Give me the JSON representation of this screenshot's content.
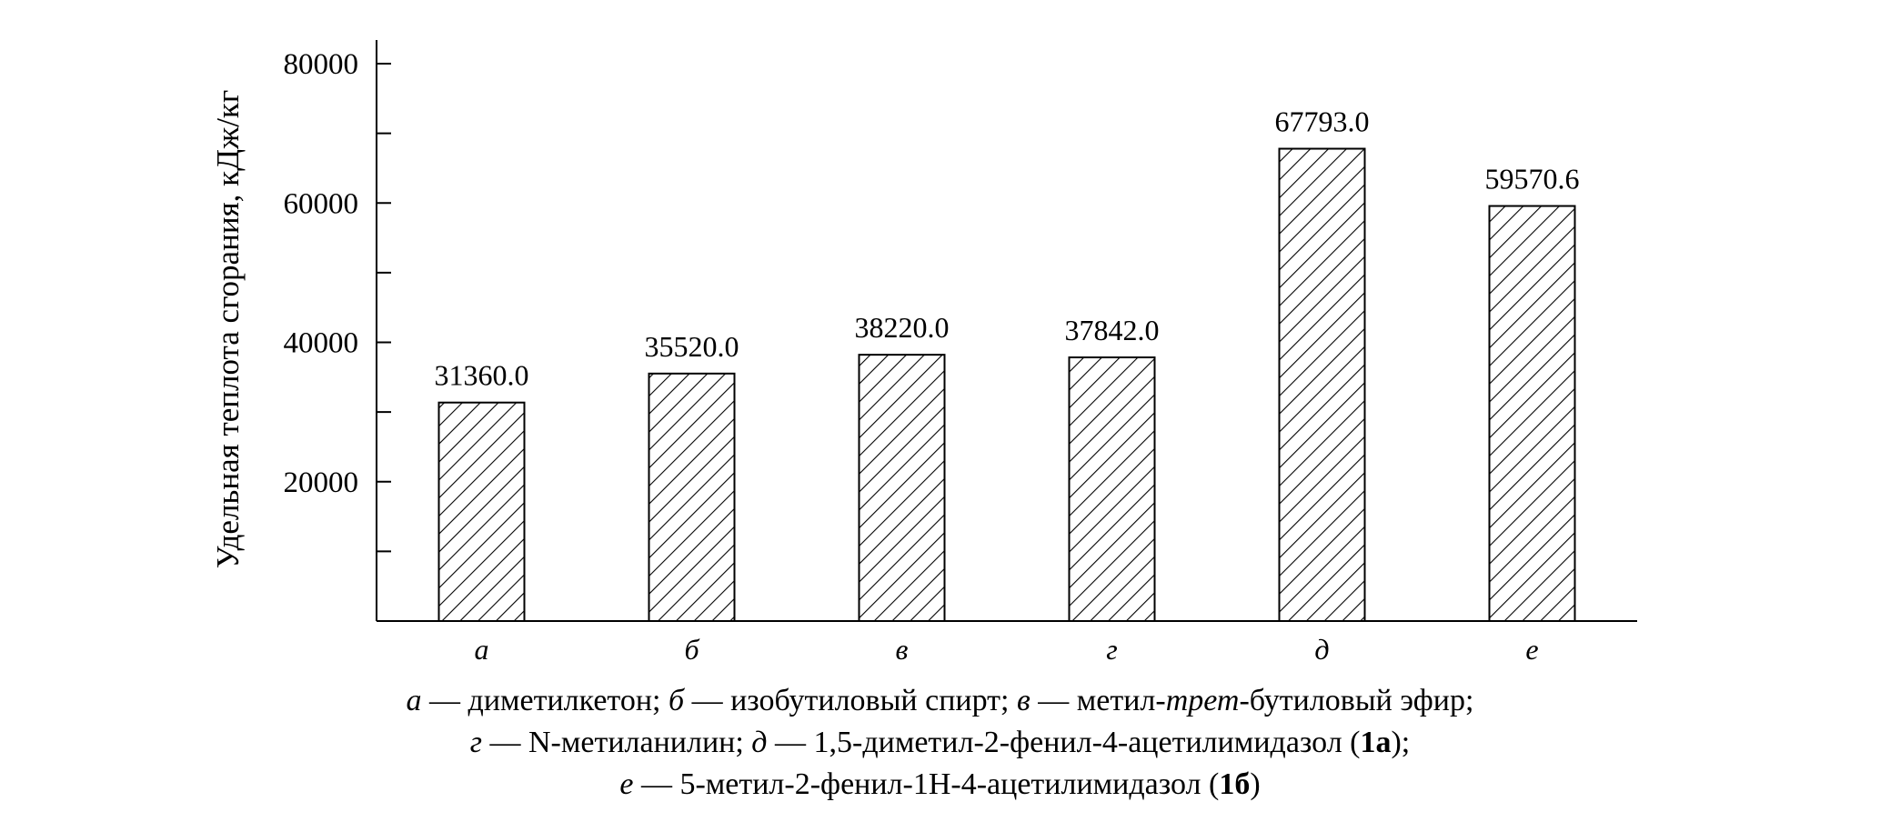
{
  "chart_data": {
    "type": "bar",
    "ylabel": "Удельная теплота сгорания, кДж/кг",
    "xlabel": "",
    "categories": [
      "а",
      "б",
      "в",
      "г",
      "д",
      "е"
    ],
    "values": [
      31360.0,
      35520.0,
      38220.0,
      37842.0,
      67793.0,
      59570.6
    ],
    "value_labels": [
      "31360.0",
      "35520.0",
      "38220.0",
      "37842.0",
      "67793.0",
      "59570.6"
    ],
    "ylim": [
      0,
      80000
    ],
    "y_ticks": [
      20000,
      40000,
      60000,
      80000
    ],
    "y_tick_labels": [
      "20000",
      "40000",
      "60000",
      "80000"
    ],
    "y_minor_ticks": [
      10000,
      30000,
      50000,
      70000
    ],
    "bar_fill": "diagonal-hatch",
    "bar_stroke_color": "#000000",
    "grid": false,
    "legend": "none"
  },
  "caption": {
    "line1": {
      "p1": "а",
      "p2": " — диметилкетон; ",
      "p3": "б",
      "p4": " — изобутиловый спирт; ",
      "p5": "в",
      "p6": " — метил-",
      "p7": "трет",
      "p8": "-бутиловый эфир;"
    },
    "line2": {
      "p1": "г",
      "p2": " — N-метиланилин; ",
      "p3": "д",
      "p4": " — 1,5-диметил-2-фенил-4-ацетилимидазол (",
      "p5": "1а",
      "p6": ");"
    },
    "line3": {
      "p1": "е",
      "p2": " — 5-метил-2-фенил-1Н-4-ацетилимидазол (",
      "p3": "1б",
      "p4": ")"
    }
  }
}
